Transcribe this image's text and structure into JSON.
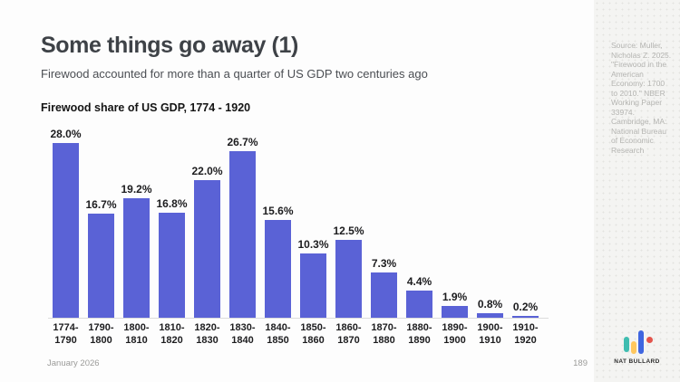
{
  "slide": {
    "title": "Some things go away (1)",
    "subtitle": "Firewood accounted for more than a quarter of US GDP two centuries ago",
    "source": "Source: Muller, Nicholas Z. 2025. \"Firewood in the American Economy: 1700 to 2010.\" NBER Working Paper 33974. Cambridge, MA: National Bureau of Economic Research",
    "footer": {
      "date": "January 2026",
      "page": "189"
    },
    "brand": {
      "name": "NAT BULLARD",
      "logo_colors": {
        "teal": "#3fbdb0",
        "yellow": "#ffc75e",
        "blue": "#3f66e0",
        "red": "#e3544c"
      }
    }
  },
  "chart_data": {
    "type": "bar",
    "title": "Firewood share of US GDP, 1774 - 1920",
    "categories": [
      "1774-1790",
      "1790-1800",
      "1800-1810",
      "1810-1820",
      "1820-1830",
      "1830-1840",
      "1840-1850",
      "1850-1860",
      "1860-1870",
      "1870-1880",
      "1880-1890",
      "1890-1900",
      "1900-1910",
      "1910-1920"
    ],
    "values": [
      28.0,
      16.7,
      19.2,
      16.8,
      22.0,
      26.7,
      15.6,
      10.3,
      12.5,
      7.3,
      4.4,
      1.9,
      0.8,
      0.2
    ],
    "value_suffix": "%",
    "bar_color": "#5a62d6",
    "xlabel": "",
    "ylabel": "Firewood share of US GDP",
    "ylim": [
      0,
      28
    ],
    "grid": false,
    "legend": "none",
    "data_labels": true
  }
}
